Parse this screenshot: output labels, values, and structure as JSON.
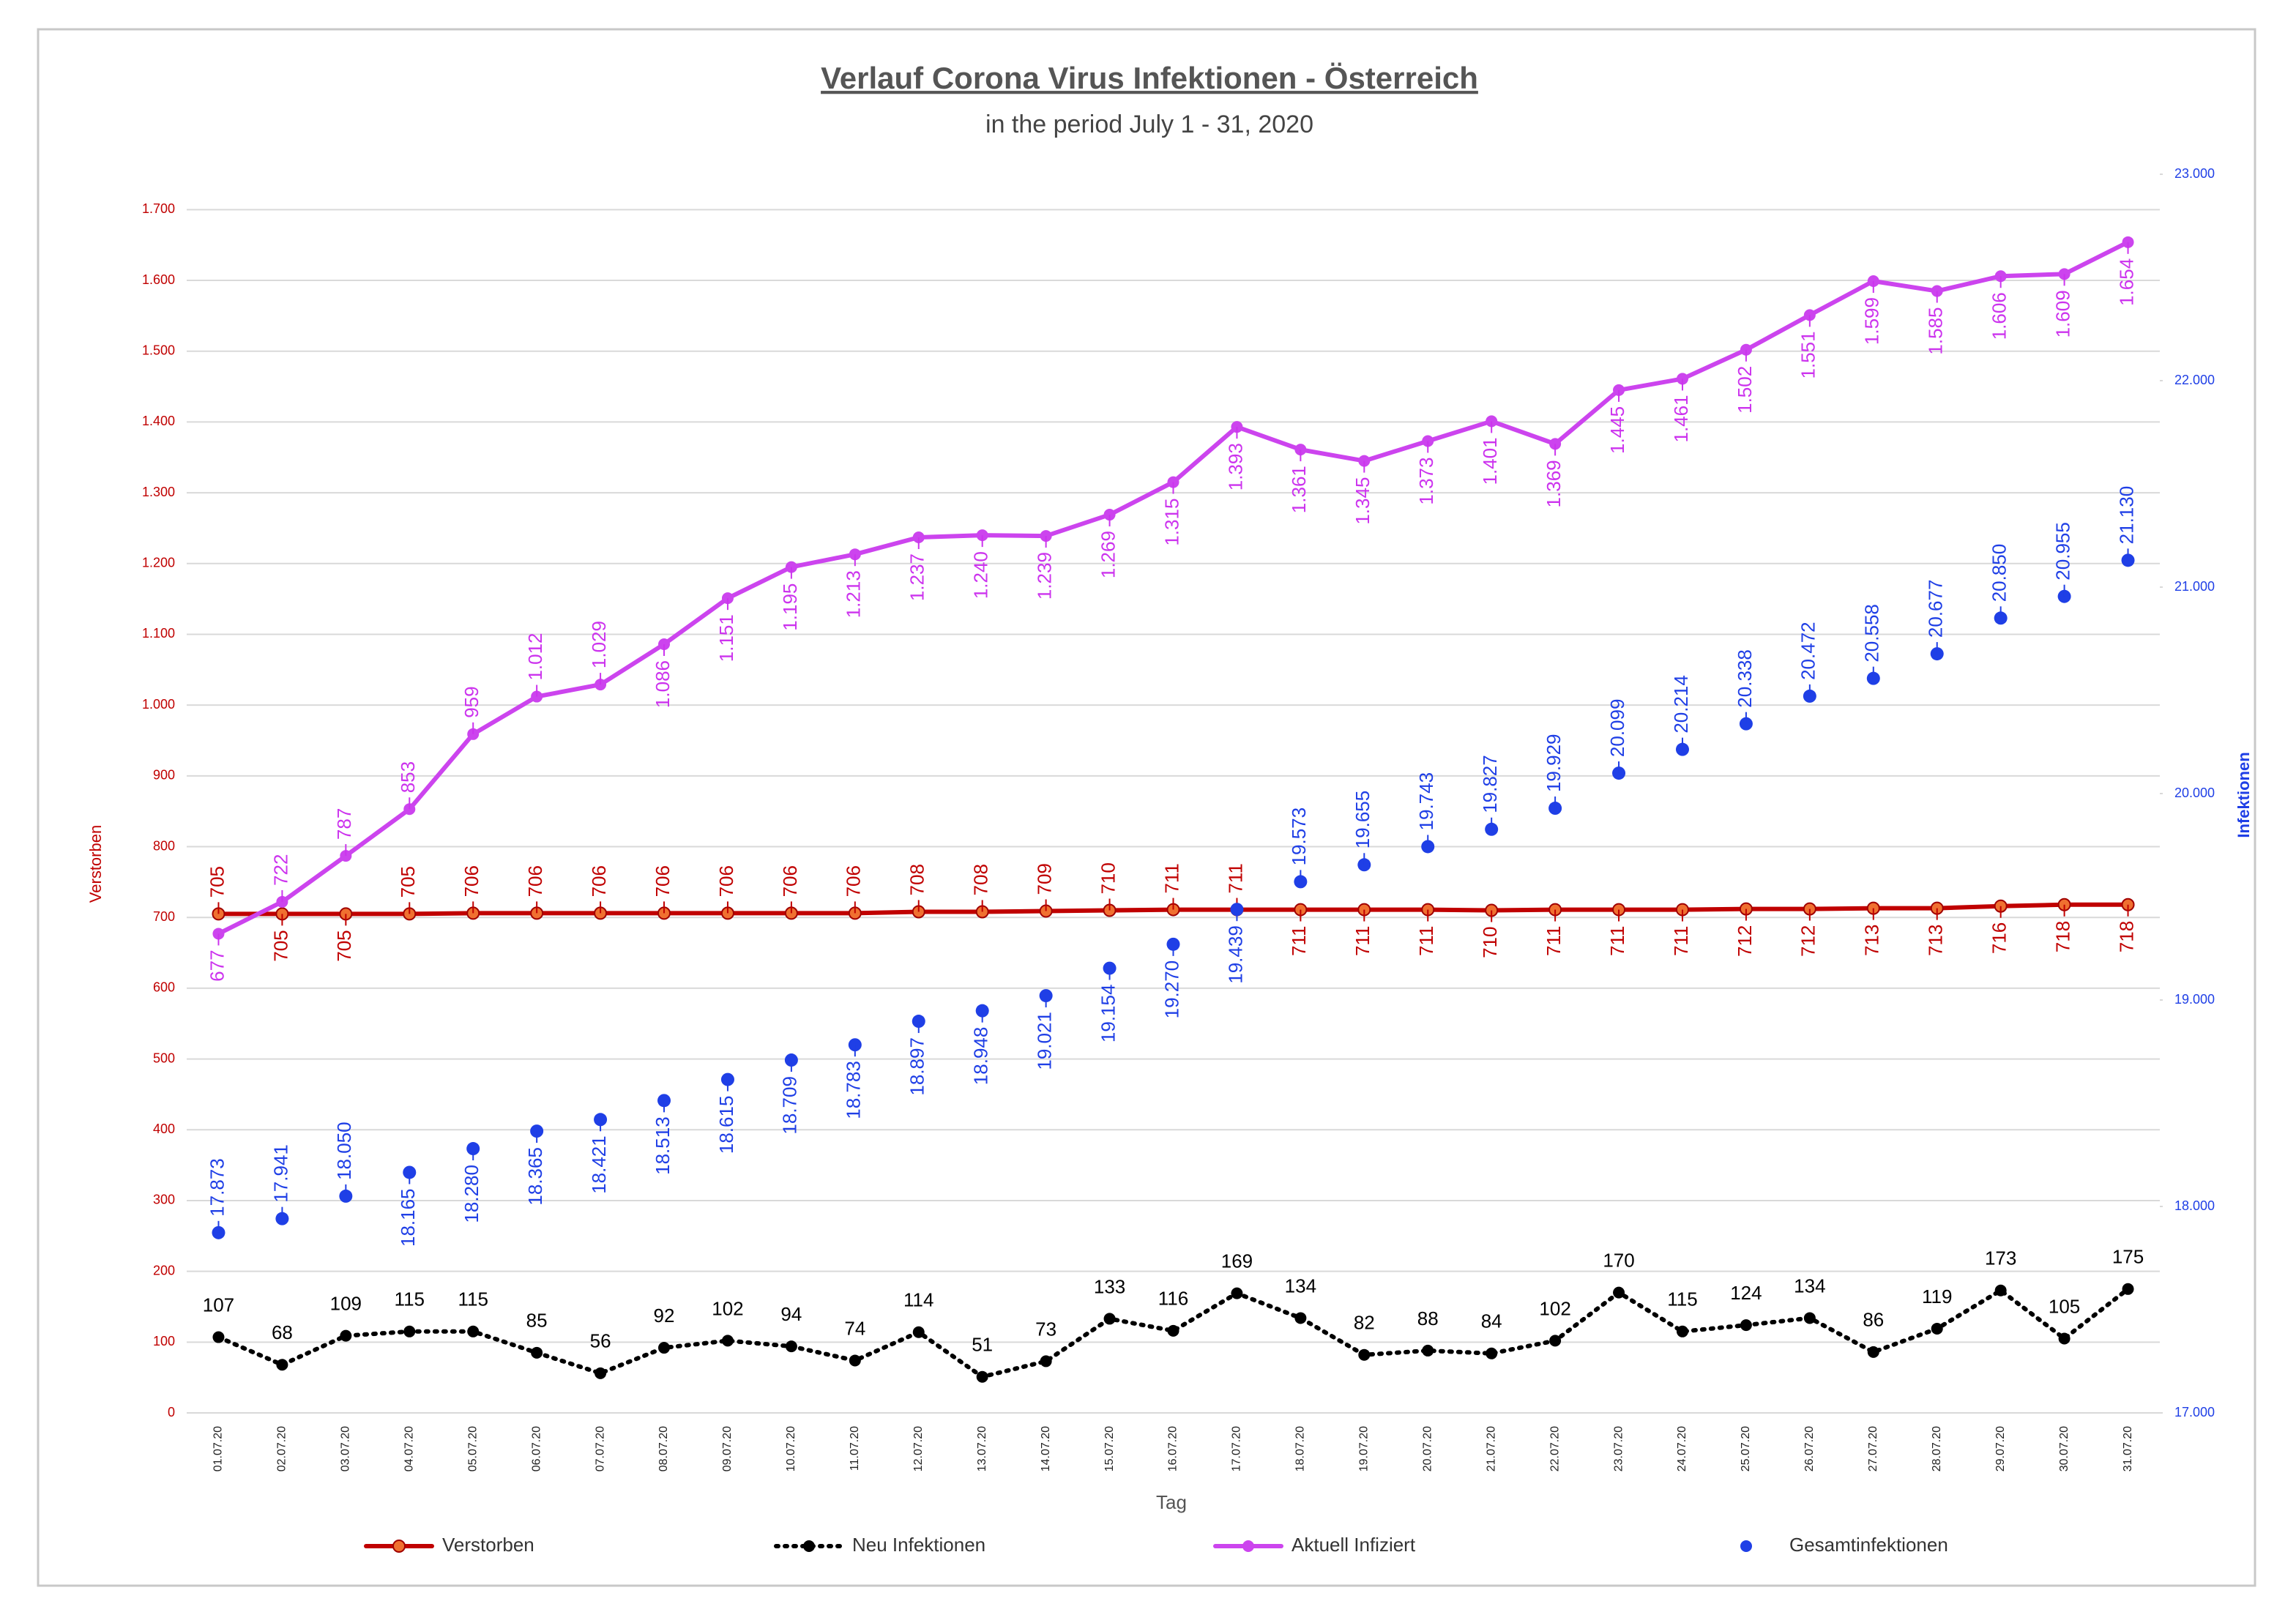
{
  "chart_data": {
    "type": "line",
    "title": "Verlauf Corona Virus Infektionen - Österreich",
    "subtitle": "in the period July 1 - 31, 2020",
    "x_label": "Tag",
    "y_label": "Verstorben",
    "y2_label": "Infektionen",
    "categories": [
      "01.07.20",
      "02.07.20",
      "03.07.20",
      "04.07.20",
      "05.07.20",
      "06.07.20",
      "07.07.20",
      "08.07.20",
      "09.07.20",
      "10.07.20",
      "11.07.20",
      "12.07.20",
      "13.07.20",
      "14.07.20",
      "15.07.20",
      "16.07.20",
      "17.07.20",
      "18.07.20",
      "19.07.20",
      "20.07.20",
      "21.07.20",
      "22.07.20",
      "23.07.20",
      "24.07.20",
      "25.07.20",
      "26.07.20",
      "27.07.20",
      "28.07.20",
      "29.07.20",
      "30.07.20",
      "31.07.20"
    ],
    "ylim": [
      0,
      1750
    ],
    "yticks": [
      0,
      100,
      200,
      300,
      400,
      500,
      600,
      700,
      800,
      900,
      {
        "value": 1000,
        "label": "1.000"
      },
      {
        "value": 1100,
        "label": "1.100"
      },
      {
        "value": 1200,
        "label": "1.200"
      },
      {
        "value": 1300,
        "label": "1.300"
      },
      {
        "value": 1400,
        "label": "1.400"
      },
      {
        "value": 1500,
        "label": "1.500"
      },
      {
        "value": 1600,
        "label": "1.600"
      },
      {
        "value": 1700,
        "label": "1.700"
      }
    ],
    "y2lim": [
      17000,
      23000
    ],
    "y2ticks": [
      {
        "value": 17000,
        "label": "17.000"
      },
      {
        "value": 18000,
        "label": "18.000"
      },
      {
        "value": 19000,
        "label": "19.000"
      },
      {
        "value": 20000,
        "label": "20.000"
      },
      {
        "value": 21000,
        "label": "21.000"
      },
      {
        "value": 22000,
        "label": "22.000"
      },
      {
        "value": 23000,
        "label": "23.000"
      }
    ],
    "grid": true,
    "legend": "bottom",
    "series": [
      {
        "name": "Verstorben",
        "color": "#c00000",
        "linestyle": "solid",
        "values": [
          705,
          705,
          705,
          705,
          706,
          706,
          706,
          706,
          706,
          706,
          706,
          708,
          708,
          709,
          710,
          711,
          711,
          711,
          711,
          711,
          710,
          711,
          711,
          711,
          712,
          712,
          713,
          713,
          716,
          718,
          718
        ]
      },
      {
        "name": "Neu Infektionen",
        "color": "#000000",
        "linestyle": "dotted",
        "values": [
          107,
          68,
          109,
          115,
          115,
          85,
          56,
          92,
          102,
          94,
          74,
          114,
          51,
          73,
          133,
          116,
          169,
          134,
          82,
          88,
          84,
          102,
          170,
          115,
          124,
          134,
          86,
          119,
          173,
          105,
          175
        ]
      },
      {
        "name": "Aktuell Infiziert",
        "color": "#cc44ee",
        "linestyle": "solid",
        "values": [
          677,
          722,
          787,
          853,
          959,
          1012,
          1029,
          1086,
          1151,
          1195,
          1213,
          1237,
          1240,
          1239,
          1269,
          1315,
          1393,
          1361,
          1345,
          1373,
          1401,
          1369,
          1445,
          1461,
          1502,
          1551,
          1599,
          1585,
          1606,
          1609,
          1654
        ],
        "value_labels": [
          "677",
          "722",
          "787",
          "853",
          "959",
          "1.012",
          "1.029",
          "1.086",
          "1.151",
          "1.195",
          "1.213",
          "1.237",
          "1.240",
          "1.239",
          "1.269",
          "1.315",
          "1.393",
          "1.361",
          "1.345",
          "1.373",
          "1.401",
          "1.369",
          "1.445",
          "1.461",
          "1.502",
          "1.551",
          "1.599",
          "1.585",
          "1.606",
          "1.609",
          "1.654"
        ]
      },
      {
        "name": "Gesamtinfektionen",
        "color": "#1f3fe6",
        "linestyle": "none",
        "axis": "y2",
        "values": [
          17873,
          17941,
          18050,
          18165,
          18280,
          18365,
          18421,
          18513,
          18615,
          18709,
          18783,
          18897,
          18948,
          19021,
          19154,
          19270,
          19439,
          19573,
          19655,
          19743,
          19827,
          19929,
          20099,
          20214,
          20338,
          20472,
          20558,
          20677,
          20850,
          20955,
          21130
        ],
        "value_labels": [
          "17.873",
          "17.941",
          "18.050",
          "18.165",
          "18.280",
          "18.365",
          "18.421",
          "18.513",
          "18.615",
          "18.709",
          "18.783",
          "18.897",
          "18.948",
          "19.021",
          "19.154",
          "19.270",
          "19.439",
          "19.573",
          "19.655",
          "19.743",
          "19.827",
          "19.929",
          "20.099",
          "20.214",
          "20.338",
          "20.472",
          "20.558",
          "20.677",
          "20.850",
          "20.955",
          "21.130"
        ]
      }
    ]
  }
}
